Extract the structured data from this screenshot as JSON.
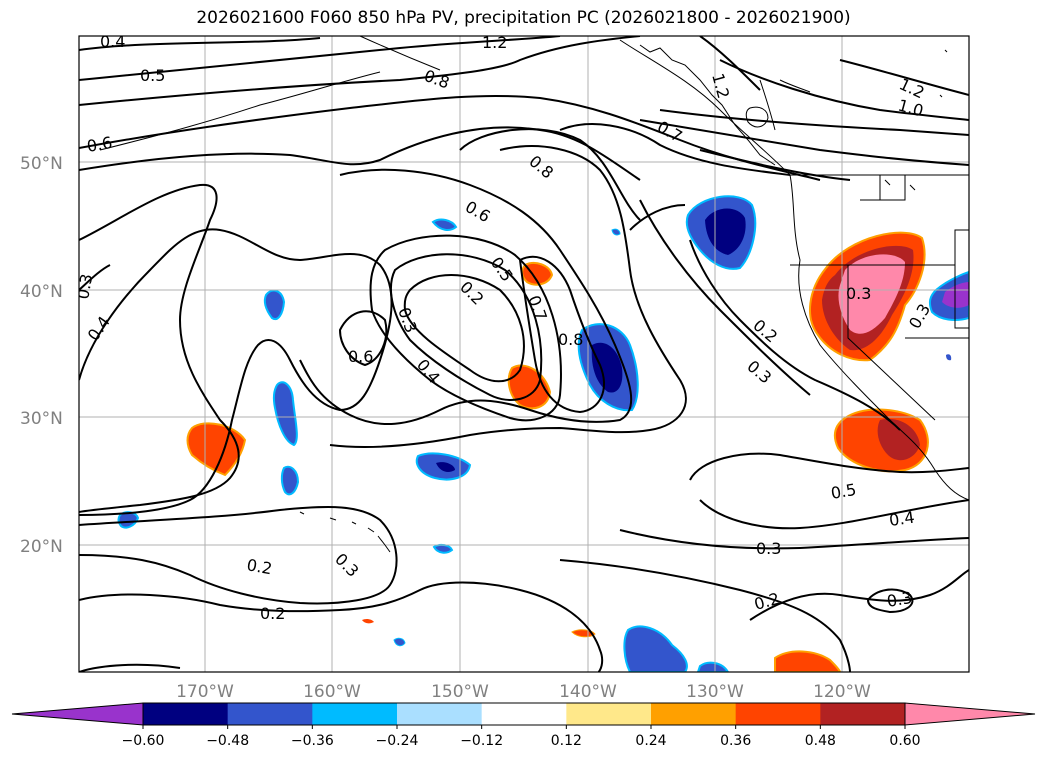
{
  "title": "2026021600 F060 850 hPa PV, precipitation PC (2026021800 - 2026021900)",
  "map": {
    "lat_labels": [
      "50°N",
      "40°N",
      "30°N",
      "20°N"
    ],
    "lon_labels": [
      "170°W",
      "160°W",
      "150°W",
      "140°W",
      "130°W",
      "120°W"
    ],
    "contour_labels": [
      "0.4",
      "1.2",
      "0.5",
      "0.8",
      "1.2",
      "1.2",
      "1.0",
      "0.6",
      "0.7",
      "0.8",
      "0.6",
      "0.3",
      "0.5",
      "0.2",
      "0.7",
      "0.8",
      "0.4",
      "0.3",
      "0.6",
      "0.4",
      "0.2",
      "0.3",
      "0.3",
      "0.5",
      "0.4",
      "0.3",
      "0.2",
      "0.3",
      "0.2",
      "0.2",
      "0.3",
      "0.3"
    ],
    "colors": {
      "grid": "#b0b0b0",
      "contour": "#000000",
      "coast": "#000000"
    }
  },
  "colorbar": {
    "ticks": [
      "−0.60",
      "−0.48",
      "−0.36",
      "−0.24",
      "−0.12",
      "0.12",
      "0.24",
      "0.36",
      "0.48",
      "0.60"
    ],
    "colors": [
      "#9933cc",
      "#000080",
      "#3355cc",
      "#00bbff",
      "#aadfff",
      "#ffffff",
      "#ffe88a",
      "#ffa000",
      "#ff4400",
      "#b22222",
      "#ff88aa"
    ]
  }
}
